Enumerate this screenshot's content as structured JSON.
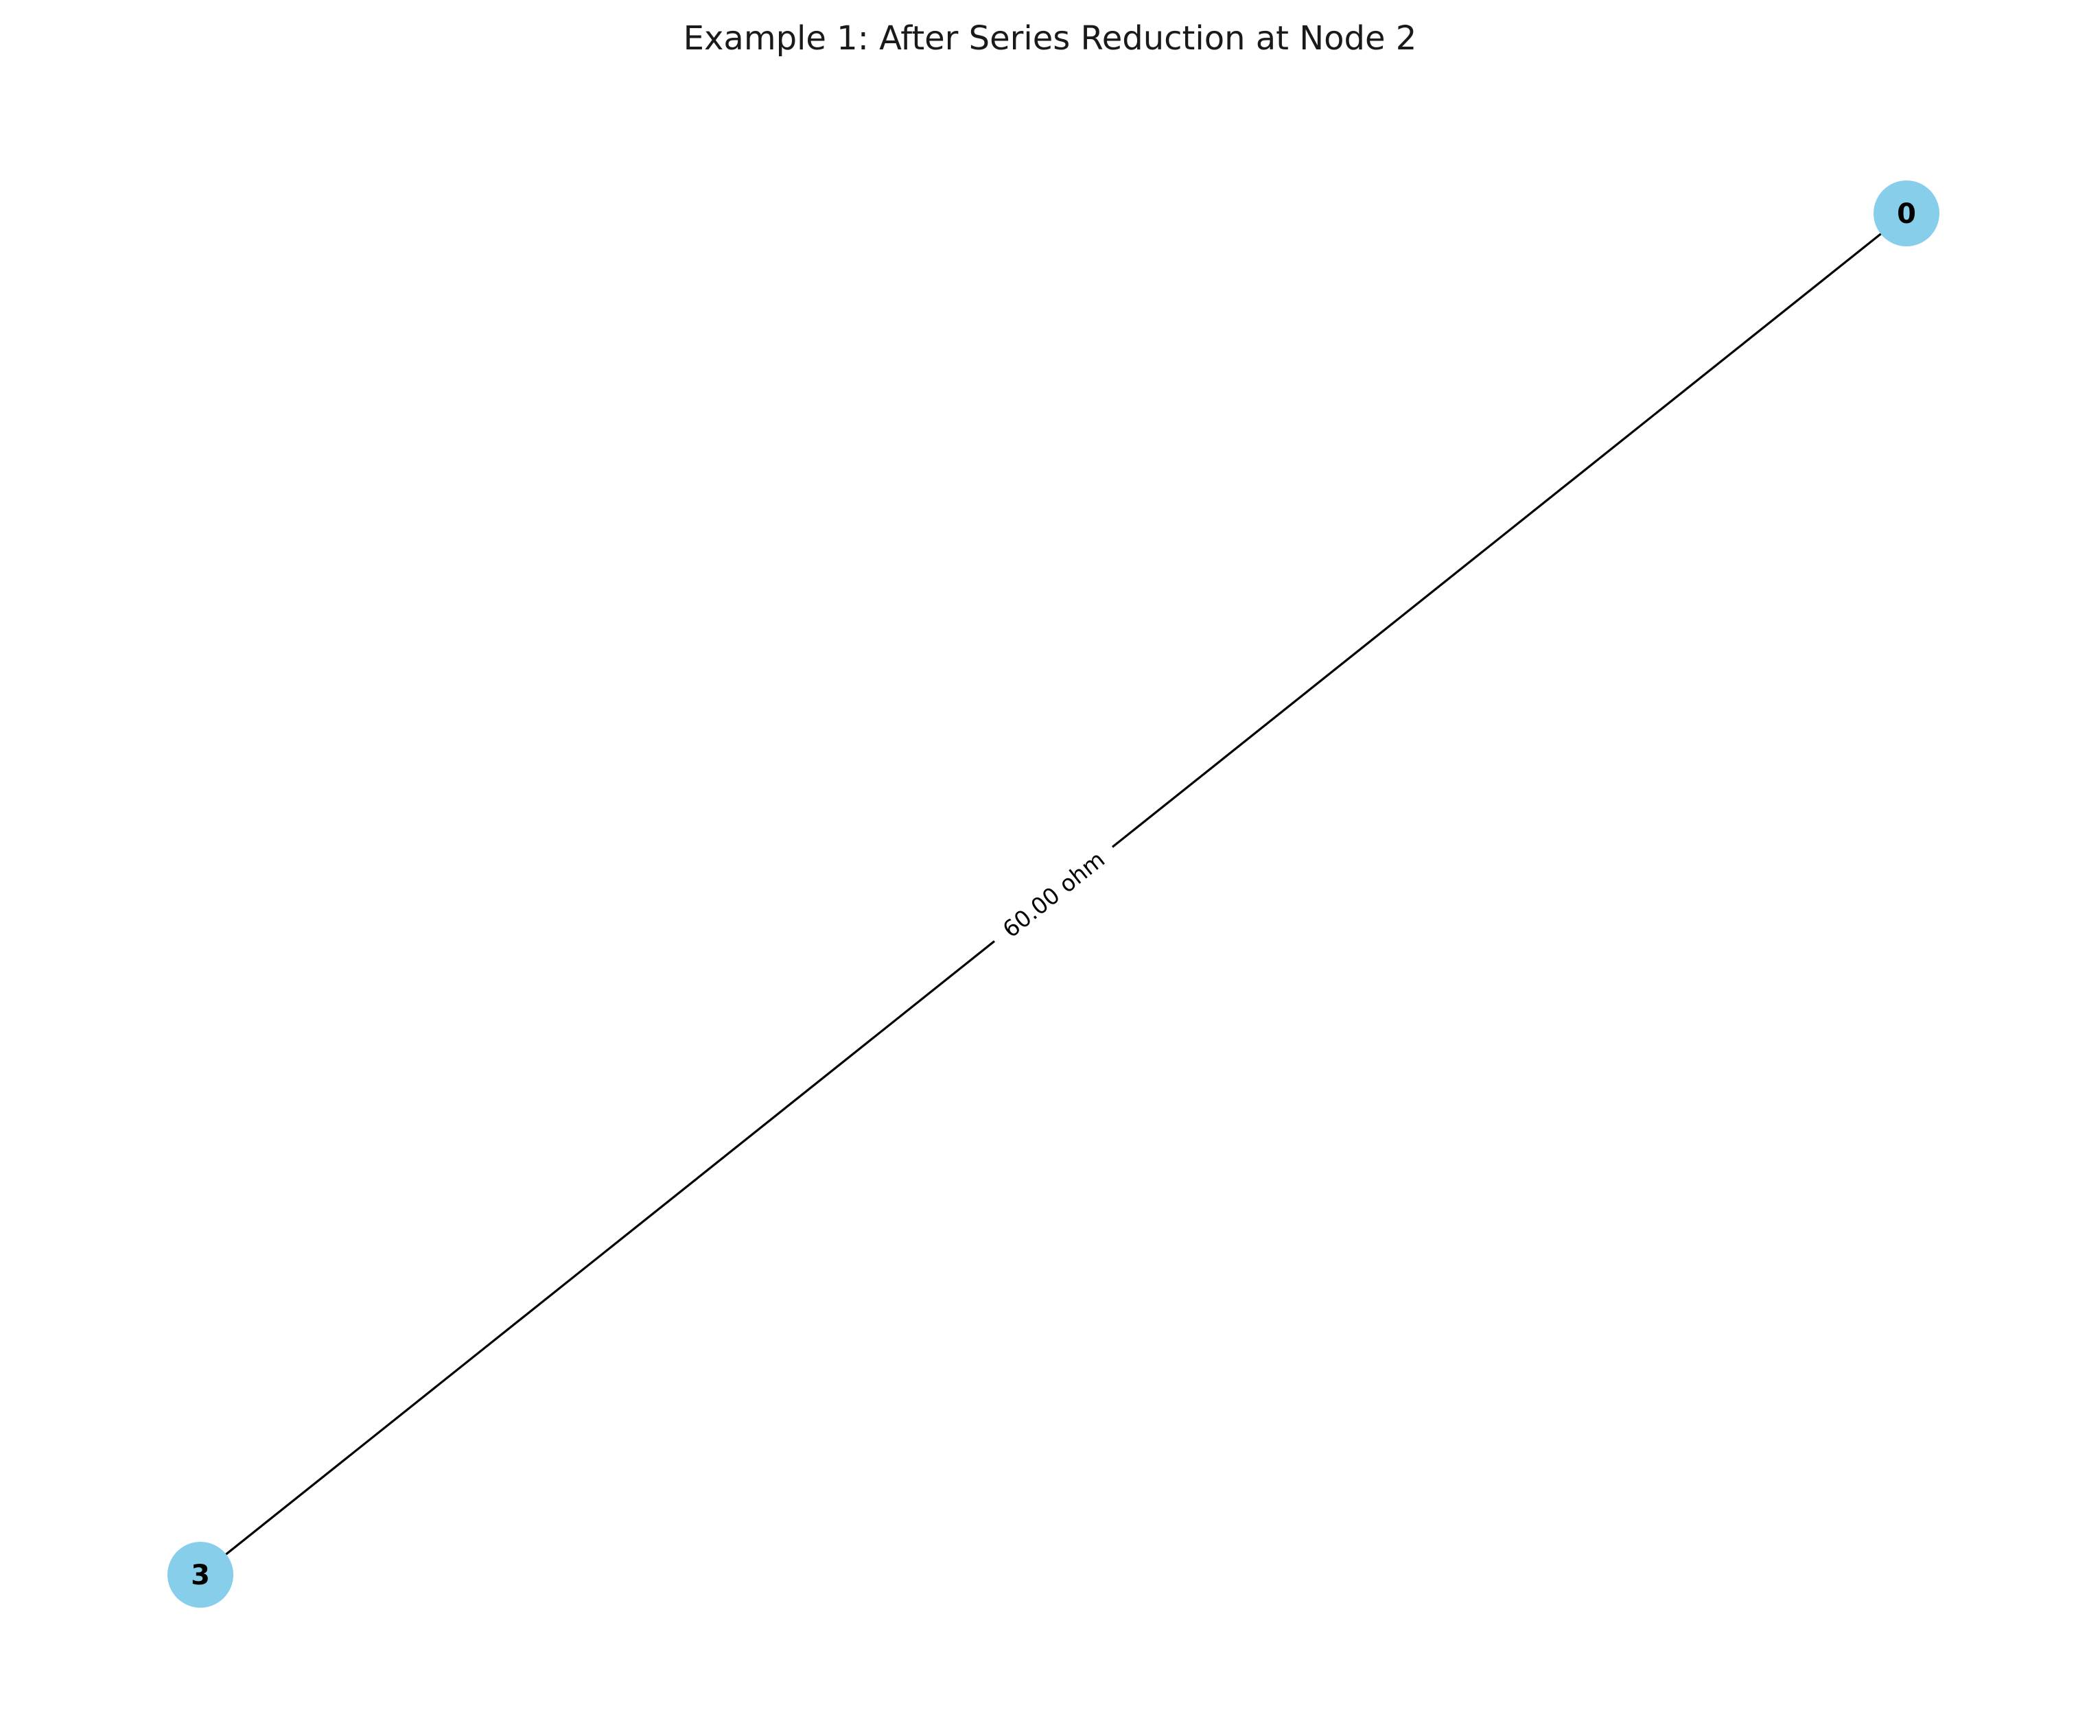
{
  "figure": {
    "title": "Example 1: After Series Reduction at Node 2"
  },
  "colors": {
    "node_fill": "#87CEEB",
    "edge": "#000000",
    "background": "#ffffff"
  },
  "graph": {
    "nodes": [
      {
        "id": "0",
        "label": "0"
      },
      {
        "id": "3",
        "label": "3"
      }
    ],
    "edges": [
      {
        "source": "3",
        "target": "0",
        "label": "60.00 ohm"
      }
    ]
  }
}
